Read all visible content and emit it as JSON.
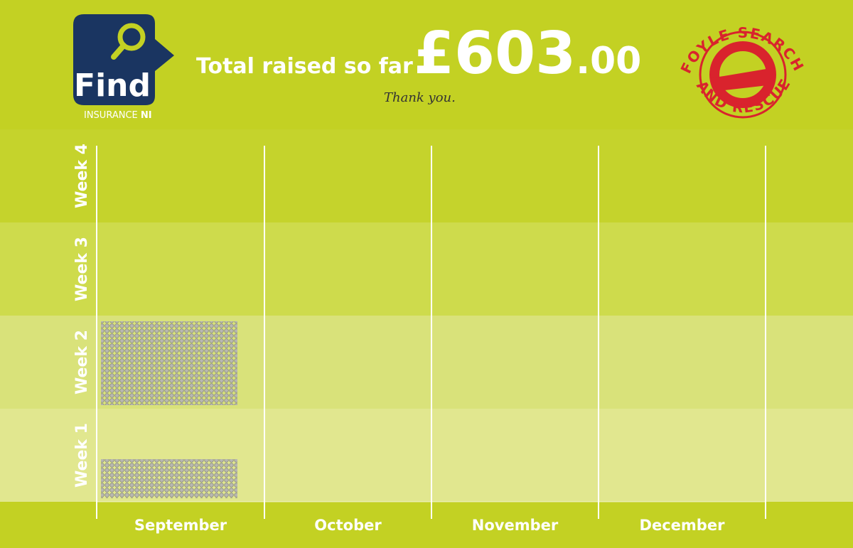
{
  "header": {
    "logo_left": {
      "brand": "Find",
      "sub": "INSURANCE",
      "sub_bold": "NI"
    },
    "total": {
      "label": "Total raised so far",
      "amount": "£603",
      "decimals": ".00"
    },
    "note": "Thank you.",
    "logo_right": {
      "top_text": "FOYLE SEARCH",
      "bottom_text": "AND RESCUE"
    }
  },
  "board": {
    "rows": [
      "Week 4",
      "Week 3",
      "Week 2",
      "Week 1"
    ],
    "columns": [
      "September",
      "October",
      "November",
      "December"
    ]
  }
}
